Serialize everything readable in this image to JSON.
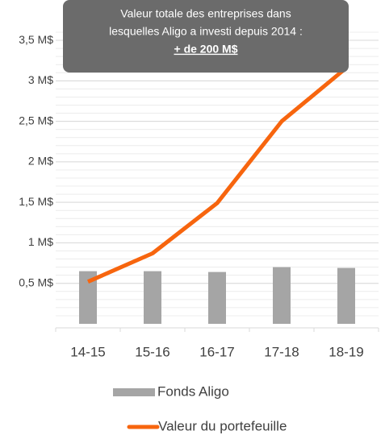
{
  "chart_data": {
    "type": "bar+line",
    "categories": [
      "14-15",
      "15-16",
      "16-17",
      "17-18",
      "18-19"
    ],
    "series": [
      {
        "name": "Fonds Aligo",
        "type": "bar",
        "color": "#a5a5a5",
        "values": [
          0.65,
          0.65,
          0.64,
          0.7,
          0.69
        ]
      },
      {
        "name": "Valeur du portefeuille",
        "type": "line",
        "color": "#f7650e",
        "values": [
          0.52,
          0.87,
          1.49,
          2.5,
          3.16
        ]
      }
    ],
    "ylim": [
      0,
      3.6
    ],
    "yticks": [
      {
        "value": 0.5,
        "label": "0,5 M$"
      },
      {
        "value": 1,
        "label": "1 M$"
      },
      {
        "value": 1.5,
        "label": "1,5 M$"
      },
      {
        "value": 2,
        "label": "2 M$"
      },
      {
        "value": 2.5,
        "label": "2,5 M$"
      },
      {
        "value": 3,
        "label": "3 M$"
      },
      {
        "value": 3.5,
        "label": "3,5 M$"
      }
    ],
    "grid": true,
    "legend": "bottom",
    "annotation": {
      "lines": [
        "Valeur totale des entreprises dans",
        "lesquelles Aligo a investi depuis 2014 :"
      ],
      "highlight": "+ de 200 M$"
    }
  }
}
